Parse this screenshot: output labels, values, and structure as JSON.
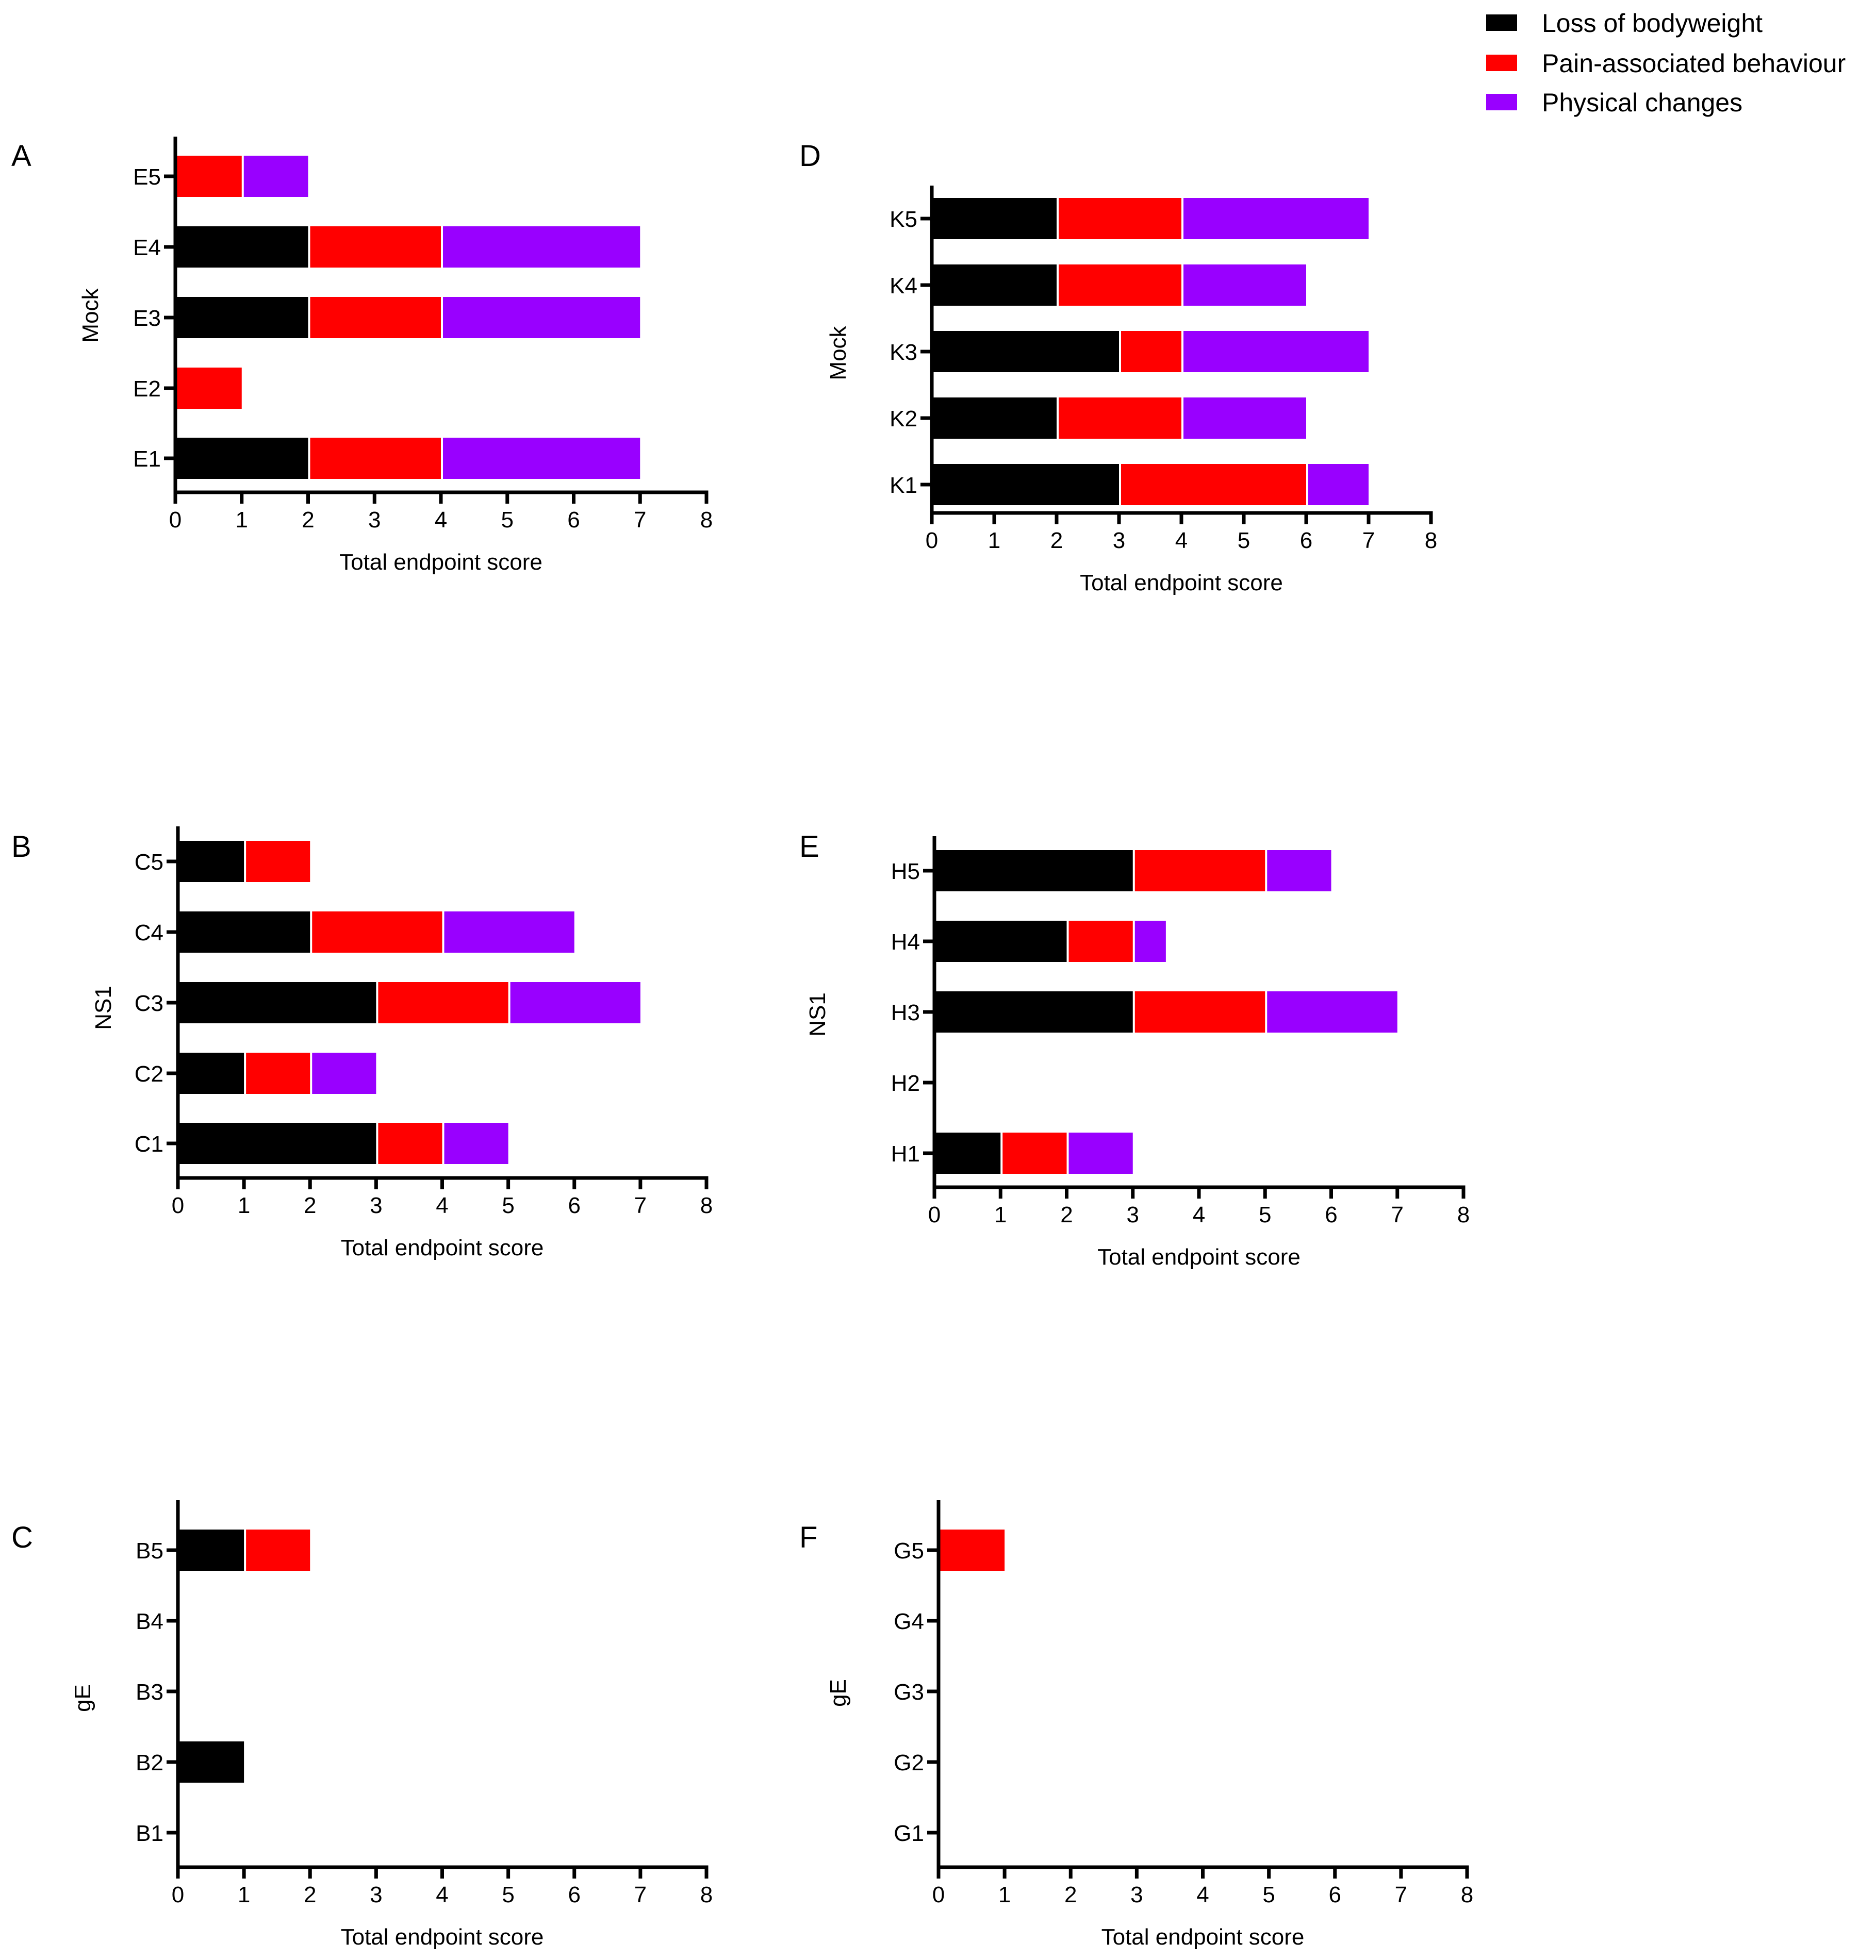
{
  "legend": {
    "items": [
      {
        "label": "Loss of bodyweight",
        "color": "#000000"
      },
      {
        "label": "Pain-associated behaviour",
        "color": "#ff0000"
      },
      {
        "label": "Physical changes",
        "color": "#9900ff"
      }
    ]
  },
  "chart_data": [
    {
      "panel": "A",
      "type": "bar",
      "orientation": "horizontal",
      "stacked": true,
      "group_label": "Mock",
      "xlabel": "Total endpoint score",
      "xlim": [
        0,
        8
      ],
      "xticks": [
        "0",
        "1",
        "2",
        "3",
        "4",
        "5",
        "6",
        "7",
        "8"
      ],
      "categories": [
        "E5",
        "E4",
        "E3",
        "E2",
        "E1"
      ],
      "series": [
        {
          "name": "Loss of bodyweight",
          "values": [
            0,
            2,
            2,
            0,
            2
          ]
        },
        {
          "name": "Pain-associated behaviour",
          "values": [
            1,
            2,
            2,
            1,
            2
          ]
        },
        {
          "name": "Physical changes",
          "values": [
            1,
            3,
            3,
            0,
            3
          ]
        }
      ]
    },
    {
      "panel": "B",
      "type": "bar",
      "orientation": "horizontal",
      "stacked": true,
      "group_label": "NS1",
      "xlabel": "Total endpoint score",
      "xlim": [
        0,
        8
      ],
      "xticks": [
        "0",
        "1",
        "2",
        "3",
        "4",
        "5",
        "6",
        "7",
        "8"
      ],
      "categories": [
        "C5",
        "C4",
        "C3",
        "C2",
        "C1"
      ],
      "series": [
        {
          "name": "Loss of bodyweight",
          "values": [
            1,
            2,
            3,
            1,
            3
          ]
        },
        {
          "name": "Pain-associated behaviour",
          "values": [
            1,
            2,
            2,
            1,
            1
          ]
        },
        {
          "name": "Physical changes",
          "values": [
            0,
            2,
            2,
            1,
            1
          ]
        }
      ]
    },
    {
      "panel": "C",
      "type": "bar",
      "orientation": "horizontal",
      "stacked": true,
      "group_label": "gE",
      "xlabel": "Total endpoint score",
      "xlim": [
        0,
        8
      ],
      "xticks": [
        "0",
        "1",
        "2",
        "3",
        "4",
        "5",
        "6",
        "7",
        "8"
      ],
      "categories": [
        "B5",
        "B4",
        "B3",
        "B2",
        "B1"
      ],
      "series": [
        {
          "name": "Loss of bodyweight",
          "values": [
            1,
            0,
            0,
            1,
            0
          ]
        },
        {
          "name": "Pain-associated behaviour",
          "values": [
            1,
            0,
            0,
            0,
            0
          ]
        },
        {
          "name": "Physical changes",
          "values": [
            0,
            0,
            0,
            0,
            0
          ]
        }
      ]
    },
    {
      "panel": "D",
      "type": "bar",
      "orientation": "horizontal",
      "stacked": true,
      "group_label": "Mock",
      "xlabel": "Total endpoint score",
      "xlim": [
        0,
        8
      ],
      "xticks": [
        "0",
        "1",
        "2",
        "3",
        "4",
        "5",
        "6",
        "7",
        "8"
      ],
      "categories": [
        "K5",
        "K4",
        "K3",
        "K2",
        "K1"
      ],
      "series": [
        {
          "name": "Loss of bodyweight",
          "values": [
            2,
            2,
            3,
            2,
            3
          ]
        },
        {
          "name": "Pain-associated behaviour",
          "values": [
            2,
            2,
            1,
            2,
            3
          ]
        },
        {
          "name": "Physical changes",
          "values": [
            3,
            2,
            3,
            2,
            1
          ]
        }
      ]
    },
    {
      "panel": "E",
      "type": "bar",
      "orientation": "horizontal",
      "stacked": true,
      "group_label": "NS1",
      "xlabel": "Total endpoint score",
      "xlim": [
        0,
        8
      ],
      "xticks": [
        "0",
        "1",
        "2",
        "3",
        "4",
        "5",
        "6",
        "7",
        "8"
      ],
      "categories": [
        "H5",
        "H4",
        "H3",
        "H2",
        "H1"
      ],
      "series": [
        {
          "name": "Loss of bodyweight",
          "values": [
            3,
            2,
            3,
            0,
            1
          ]
        },
        {
          "name": "Pain-associated behaviour",
          "values": [
            2,
            1,
            2,
            0,
            1
          ]
        },
        {
          "name": "Physical changes",
          "values": [
            1,
            0.5,
            2,
            0,
            1
          ]
        }
      ]
    },
    {
      "panel": "F",
      "type": "bar",
      "orientation": "horizontal",
      "stacked": true,
      "group_label": "gE",
      "xlabel": "Total endpoint score",
      "xlim": [
        0,
        8
      ],
      "xticks": [
        "0",
        "1",
        "2",
        "3",
        "4",
        "5",
        "6",
        "7",
        "8"
      ],
      "categories": [
        "G5",
        "G4",
        "G3",
        "G2",
        "G1"
      ],
      "series": [
        {
          "name": "Loss of bodyweight",
          "values": [
            0,
            0,
            0,
            0,
            0
          ]
        },
        {
          "name": "Pain-associated behaviour",
          "values": [
            1,
            0,
            0,
            0,
            0
          ]
        },
        {
          "name": "Physical changes",
          "values": [
            0,
            0,
            0,
            0,
            0
          ]
        }
      ]
    }
  ]
}
